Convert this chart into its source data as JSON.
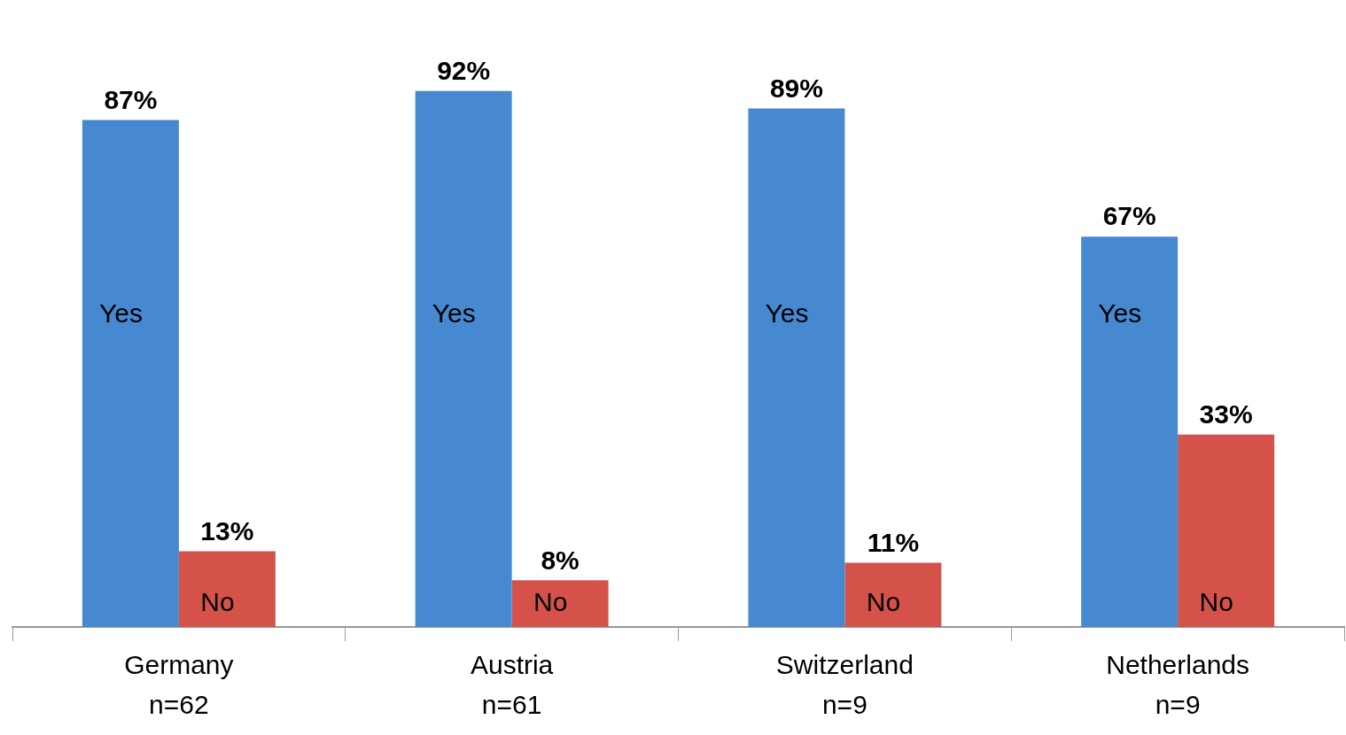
{
  "chart_data": {
    "type": "bar",
    "categories": [
      "Germany\nn=62",
      "Austria\nn=61",
      "Switzerland\nn=9",
      "Netherlands\nn=9"
    ],
    "series": [
      {
        "name": "Yes",
        "color": "#4689d0",
        "values": [
          87,
          92,
          89,
          67
        ],
        "value_labels": [
          "87%",
          "92%",
          "89%",
          "67%"
        ]
      },
      {
        "name": "No",
        "color": "#d4524a",
        "values": [
          13,
          8,
          11,
          33
        ],
        "value_labels": [
          "13%",
          "8%",
          "11%",
          "33%"
        ]
      }
    ],
    "legend": false,
    "grid": false
  }
}
